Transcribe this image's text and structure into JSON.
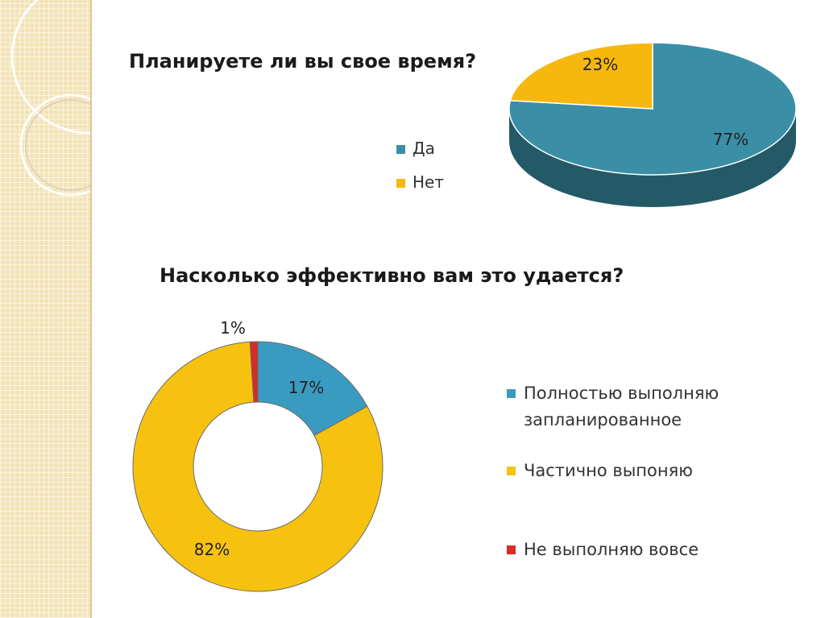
{
  "slide": {
    "colors": {
      "teal": "#3a8fa6",
      "orange": "#f6b80f",
      "yellow": "#f6c20f",
      "red": "#d92a2a"
    }
  },
  "chart_data": [
    {
      "type": "pie",
      "variant": "3d",
      "title": "Планируете ли вы свое время?",
      "categories": [
        "Да",
        "Нет"
      ],
      "values": [
        77,
        23
      ],
      "value_labels": [
        "77%",
        "23%"
      ],
      "colors": [
        "#3a8fa6",
        "#f6b80f"
      ],
      "legend": "right-of-title"
    },
    {
      "type": "pie",
      "variant": "doughnut",
      "title": "Насколько эффективно вам это удается?",
      "categories": [
        "Полностью выполняю запланированное",
        "Частично выпоняю",
        "Не выполняю вовсе"
      ],
      "legend_lines": [
        [
          "Полностью выполняю",
          "запланированное"
        ],
        [
          "Частично выпоняю"
        ],
        [
          "Не выполняю вовсе"
        ]
      ],
      "values": [
        17,
        82,
        1
      ],
      "value_labels": [
        "17%",
        "82%",
        "1%"
      ],
      "colors": [
        "#3a9bc1",
        "#f6c20f",
        "#d92a2a"
      ],
      "legend": "right"
    }
  ]
}
